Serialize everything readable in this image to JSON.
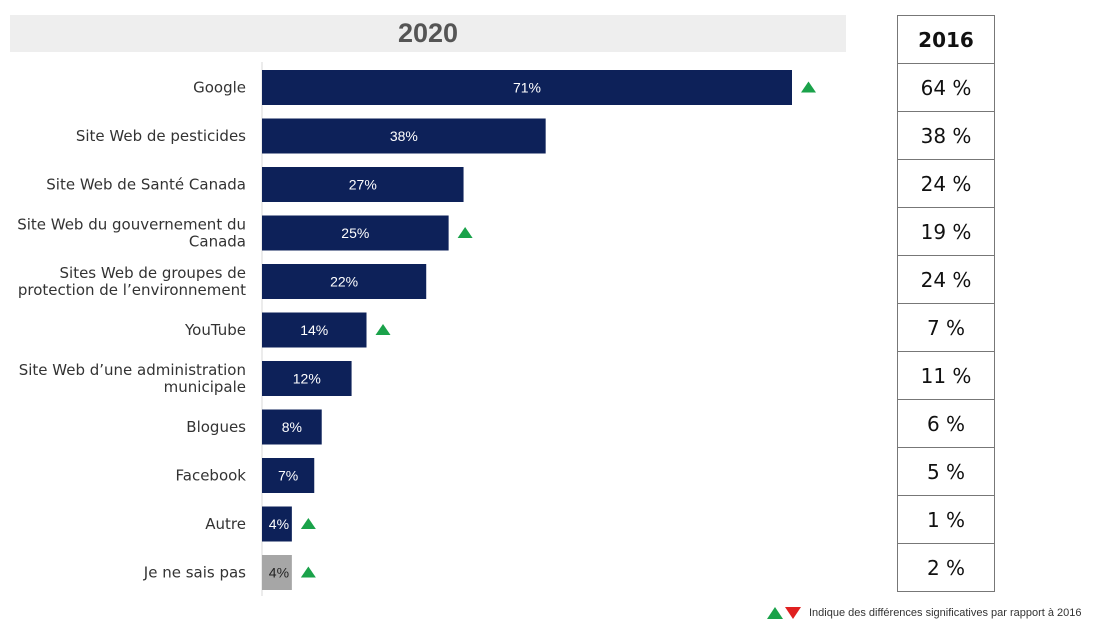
{
  "header": {
    "year": "2020"
  },
  "table": {
    "header": "2016",
    "values": [
      "64 %",
      "38 %",
      "24 %",
      "19 %",
      "24 %",
      "7 %",
      "11 %",
      "6 %",
      "5 %",
      "1 %",
      "2 %"
    ]
  },
  "legend": {
    "note": "Indique des différences significatives par rapport à 2016"
  },
  "colors": {
    "bar": "#0d2159",
    "bar_unknown": "#a6a6a6",
    "up_arrow": "#1aa24a",
    "down_arrow": "#e02020",
    "header_bg": "#eeeeee"
  },
  "chart_data": {
    "type": "bar",
    "orientation": "horizontal",
    "title": "2020",
    "categories": [
      "Google",
      "Site Web de pesticides",
      "Site Web de Santé Canada",
      "Site Web du gouvernement du Canada",
      "Sites Web de groupes de protection de l’environnement",
      "YouTube",
      "Site Web d’une administration municipale",
      "Blogues",
      "Facebook",
      "Autre",
      "Je ne sais pas"
    ],
    "category_lines": [
      [
        "Google"
      ],
      [
        "Site Web de pesticides"
      ],
      [
        "Site Web de Santé Canada"
      ],
      [
        "Site Web du gouvernement du",
        "Canada"
      ],
      [
        "Sites Web de groupes de",
        "protection de l’environnement"
      ],
      [
        "YouTube"
      ],
      [
        "Site Web d’une administration",
        "municipale"
      ],
      [
        "Blogues"
      ],
      [
        "Facebook"
      ],
      [
        "Autre"
      ],
      [
        "Je ne sais pas"
      ]
    ],
    "values": [
      71,
      38,
      27,
      25,
      22,
      14,
      12,
      8,
      7,
      4,
      4
    ],
    "value_labels": [
      "71%",
      "38%",
      "27%",
      "25%",
      "22%",
      "14%",
      "12%",
      "8%",
      "7%",
      "4%",
      "4%"
    ],
    "significant_increase": [
      true,
      false,
      false,
      true,
      false,
      true,
      false,
      false,
      false,
      true,
      true
    ],
    "highlight_last_gray": true,
    "xlim": [
      0,
      100
    ],
    "grid": false,
    "xlabel": "",
    "ylabel": ""
  }
}
